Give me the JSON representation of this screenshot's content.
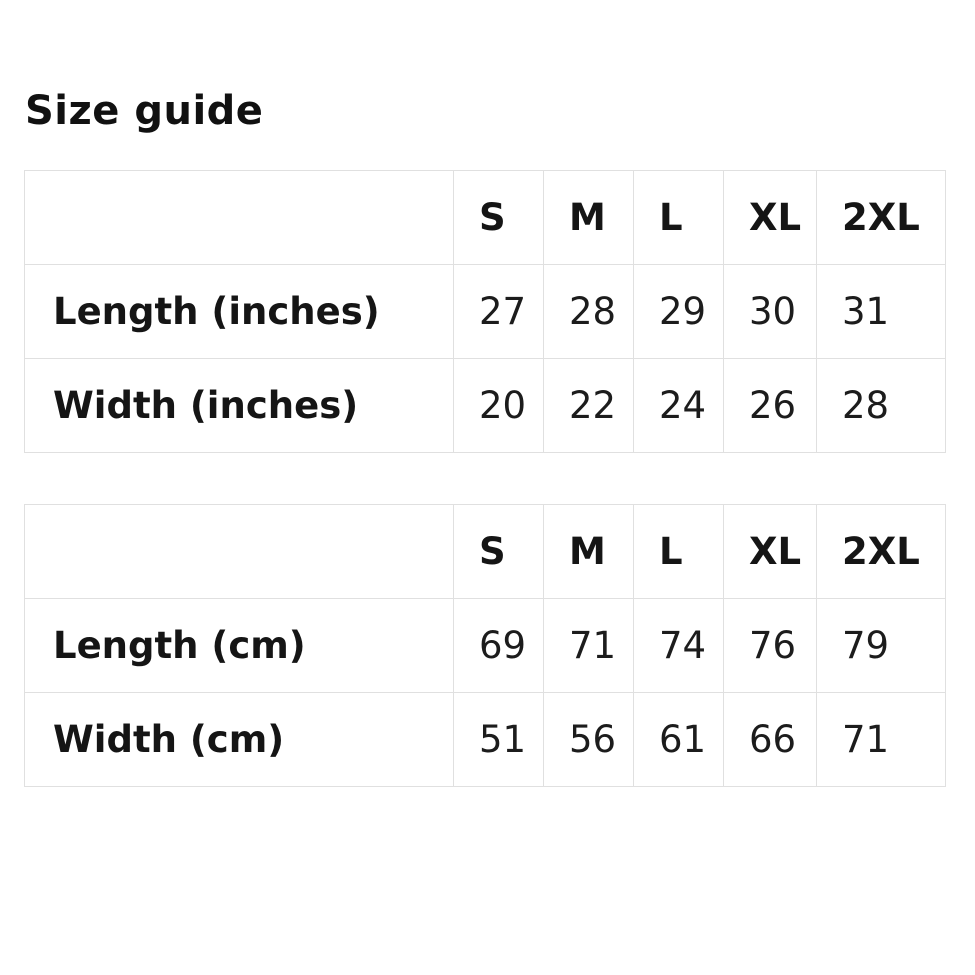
{
  "page": {
    "title": "Size guide",
    "background_color": "#ffffff",
    "text_color": "#1a1a1a",
    "border_color": "#e0e0e0"
  },
  "tables": [
    {
      "unit": "inches",
      "sizes": [
        "S",
        "M",
        "L",
        "XL",
        "2XL"
      ],
      "rows": [
        {
          "label": "Length (inches)",
          "values": [
            "27",
            "28",
            "29",
            "30",
            "31"
          ]
        },
        {
          "label": "Width (inches)",
          "values": [
            "20",
            "22",
            "24",
            "26",
            "28"
          ]
        }
      ]
    },
    {
      "unit": "cm",
      "sizes": [
        "S",
        "M",
        "L",
        "XL",
        "2XL"
      ],
      "rows": [
        {
          "label": "Length (cm)",
          "values": [
            "69",
            "71",
            "74",
            "76",
            "79"
          ]
        },
        {
          "label": "Width (cm)",
          "values": [
            "51",
            "56",
            "61",
            "66",
            "71"
          ]
        }
      ]
    }
  ]
}
